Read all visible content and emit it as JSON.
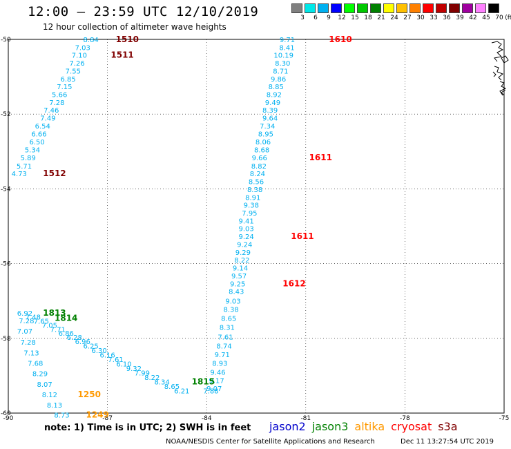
{
  "header": {
    "title": "12:00 – 23:59 UTC 12/10/2019",
    "subtitle": "12 hour collection of altimeter wave heights"
  },
  "colorbar": {
    "unit": "(ft)",
    "labels": [
      "3",
      "6",
      "9",
      "12",
      "15",
      "18",
      "21",
      "24",
      "27",
      "30",
      "33",
      "36",
      "39",
      "42",
      "45",
      "70"
    ],
    "colors": [
      "#808080",
      "#00e8e8",
      "#00b0f0",
      "#0000ff",
      "#00ff00",
      "#00c800",
      "#008000",
      "#ffff00",
      "#ffc000",
      "#ff8000",
      "#ff0000",
      "#c00000",
      "#800000",
      "#a000a0",
      "#ff80ff",
      "#000000"
    ]
  },
  "chart_data": {
    "type": "scatter",
    "xlim": [
      -90,
      -75
    ],
    "ylim": [
      -60,
      -50
    ],
    "x_ticks": [
      "-90",
      "-87",
      "-84",
      "-81",
      "-78",
      "-75"
    ],
    "y_ticks": [
      "-50",
      "-52",
      "-54",
      "-56",
      "-58",
      "-60"
    ],
    "series": [
      {
        "color": "#00b0f0",
        "points": [
          [
            -87.5,
            -50.0,
            "8.84"
          ],
          [
            -87.75,
            -50.21,
            "7.03"
          ],
          [
            -87.85,
            -50.42,
            "7.10"
          ],
          [
            -87.92,
            -50.63,
            "7.26"
          ],
          [
            -88.04,
            -50.84,
            "7.55"
          ],
          [
            -88.19,
            -51.05,
            "6.85"
          ],
          [
            -88.3,
            -51.26,
            "7.15"
          ],
          [
            -88.45,
            -51.47,
            "5.66"
          ],
          [
            -88.53,
            -51.68,
            "7.28"
          ],
          [
            -88.7,
            -51.89,
            "7.46"
          ],
          [
            -88.8,
            -52.1,
            "7.49"
          ],
          [
            -88.96,
            -52.31,
            "6.54"
          ],
          [
            -89.07,
            -52.52,
            "6.66"
          ],
          [
            -89.13,
            -52.74,
            "6.50"
          ],
          [
            -89.27,
            -52.95,
            "5.34"
          ],
          [
            -89.4,
            -53.16,
            "5.89"
          ],
          [
            -89.52,
            -53.38,
            "5.71"
          ],
          [
            -89.67,
            -53.59,
            "4.73"
          ]
        ]
      },
      {
        "color": "#00b0f0",
        "points": [
          [
            -81.56,
            -50.0,
            "9.71"
          ],
          [
            -81.57,
            -50.21,
            "8.41"
          ],
          [
            -81.67,
            -50.42,
            "10.19"
          ],
          [
            -81.7,
            -50.63,
            "8.30"
          ],
          [
            -81.76,
            -50.84,
            "8.71"
          ],
          [
            -81.83,
            -51.05,
            "9.86"
          ],
          [
            -81.9,
            -51.26,
            "8.85"
          ],
          [
            -81.96,
            -51.47,
            "8.92"
          ],
          [
            -82.0,
            -51.68,
            "9.49"
          ],
          [
            -82.08,
            -51.89,
            "8.39"
          ],
          [
            -82.08,
            -52.1,
            "9.64"
          ],
          [
            -82.16,
            -52.31,
            "7.34"
          ],
          [
            -82.21,
            -52.52,
            "8.95"
          ],
          [
            -82.29,
            -52.74,
            "8.06"
          ],
          [
            -82.33,
            -52.95,
            "8.68"
          ],
          [
            -82.4,
            -53.16,
            "9.66"
          ],
          [
            -82.42,
            -53.38,
            "8.82"
          ],
          [
            -82.46,
            -53.59,
            "8.24"
          ],
          [
            -82.5,
            -53.8,
            "8.56"
          ],
          [
            -82.54,
            -54.01,
            "8.38"
          ],
          [
            -82.6,
            -54.22,
            "8.91"
          ],
          [
            -82.65,
            -54.43,
            "9.38"
          ],
          [
            -82.7,
            -54.64,
            "7.95"
          ],
          [
            -82.8,
            -54.85,
            "9.41"
          ],
          [
            -82.8,
            -55.06,
            "9.03"
          ],
          [
            -82.8,
            -55.27,
            "9.24"
          ],
          [
            -82.85,
            -55.48,
            "9.24"
          ],
          [
            -82.9,
            -55.69,
            "9.29"
          ],
          [
            -82.93,
            -55.9,
            "8.22"
          ],
          [
            -82.98,
            -56.11,
            "9.14"
          ],
          [
            -83.02,
            -56.32,
            "9.57"
          ],
          [
            -83.06,
            -56.53,
            "9.25"
          ],
          [
            -83.1,
            -56.74,
            "8.43"
          ],
          [
            -83.2,
            -57.0,
            "9.03"
          ],
          [
            -83.26,
            -57.22,
            "8.38"
          ],
          [
            -83.33,
            -57.46,
            "8.65"
          ],
          [
            -83.38,
            -57.7,
            "8.31"
          ],
          [
            -83.43,
            -57.96,
            "7.61"
          ],
          [
            -83.47,
            -58.2,
            "8.74"
          ],
          [
            -83.53,
            -58.43,
            "9.71"
          ],
          [
            -83.6,
            -58.66,
            "8.93"
          ],
          [
            -83.66,
            -58.9,
            "9.46"
          ],
          [
            -83.7,
            -59.12,
            "9.17"
          ],
          [
            -83.77,
            -59.33,
            "9.07"
          ],
          [
            -83.87,
            -59.4,
            "7.88"
          ]
        ]
      },
      {
        "color": "#00b0f0",
        "points": [
          [
            -89.5,
            -57.32,
            "6.92"
          ],
          [
            -89.25,
            -57.42,
            "7.48"
          ],
          [
            -89.0,
            -57.53,
            "7.65"
          ],
          [
            -88.75,
            -57.64,
            "7.05"
          ],
          [
            -88.5,
            -57.75,
            "7.71"
          ],
          [
            -88.25,
            -57.86,
            "6.86"
          ],
          [
            -88.0,
            -57.97,
            "6.28"
          ],
          [
            -87.75,
            -58.08,
            "6.96"
          ],
          [
            -87.5,
            -58.2,
            "6.25"
          ],
          [
            -87.25,
            -58.32,
            "6.30"
          ],
          [
            -87.0,
            -58.44,
            "6.16"
          ],
          [
            -86.75,
            -58.56,
            "7.61"
          ],
          [
            -86.5,
            -58.68,
            "6.10"
          ],
          [
            -86.2,
            -58.8,
            "9.32"
          ],
          [
            -85.95,
            -58.92,
            "7.99"
          ],
          [
            -85.65,
            -59.04,
            "8.22"
          ],
          [
            -85.35,
            -59.16,
            "8.34"
          ],
          [
            -85.05,
            -59.28,
            "8.65"
          ],
          [
            -84.75,
            -59.4,
            "6.21"
          ]
        ]
      },
      {
        "color": "#00b0f0",
        "points": [
          [
            -89.45,
            -57.52,
            "7.28"
          ],
          [
            -89.5,
            -57.8,
            "7.07"
          ],
          [
            -89.4,
            -58.1,
            "7.28"
          ],
          [
            -89.3,
            -58.38,
            "7.13"
          ],
          [
            -89.18,
            -58.66,
            "7.68"
          ],
          [
            -89.04,
            -58.94,
            "8.29"
          ],
          [
            -88.9,
            -59.22,
            "8.07"
          ],
          [
            -88.75,
            -59.5,
            "8.12"
          ],
          [
            -88.6,
            -59.78,
            "8.13"
          ],
          [
            -88.38,
            -60.05,
            "8.73"
          ]
        ]
      }
    ],
    "time_labels": [
      {
        "x": -86.75,
        "y": -50.0,
        "text": "1510",
        "color": "#800000"
      },
      {
        "x": -86.9,
        "y": -50.42,
        "text": "1511",
        "color": "#800000"
      },
      {
        "x": -88.95,
        "y": -53.59,
        "text": "1512",
        "color": "#800000"
      },
      {
        "x": -80.3,
        "y": -50.0,
        "text": "1610",
        "color": "#ff0000"
      },
      {
        "x": -80.9,
        "y": -53.16,
        "text": "1611",
        "color": "#ff0000"
      },
      {
        "x": -81.45,
        "y": -55.27,
        "text": "1611",
        "color": "#ff0000"
      },
      {
        "x": -81.7,
        "y": -56.53,
        "text": "1612",
        "color": "#ff0000"
      },
      {
        "x": -88.95,
        "y": -57.32,
        "text": "1813",
        "color": "#008000"
      },
      {
        "x": -88.6,
        "y": -57.46,
        "text": "1814",
        "color": "#008000"
      },
      {
        "x": -84.45,
        "y": -59.16,
        "text": "1815",
        "color": "#008000"
      },
      {
        "x": -87.9,
        "y": -59.5,
        "text": "1250",
        "color": "#ff9900"
      },
      {
        "x": -87.65,
        "y": -60.05,
        "text": "1249",
        "color": "#ff9900"
      }
    ]
  },
  "footer": {
    "note": "note:  1) Time is in UTC;  2) SWH is in feet",
    "legend": [
      {
        "label": "jason2",
        "color": "#0000cc"
      },
      {
        "label": "jason3",
        "color": "#008000"
      },
      {
        "label": "altika",
        "color": "#ff9900"
      },
      {
        "label": "cryosat",
        "color": "#ff0000"
      },
      {
        "label": "s3a",
        "color": "#800000"
      }
    ],
    "credit": "NOAA/NESDIS Center for Satellite Applications and Research",
    "timestamp": "Dec 11 13:27:54 UTC 2019"
  }
}
